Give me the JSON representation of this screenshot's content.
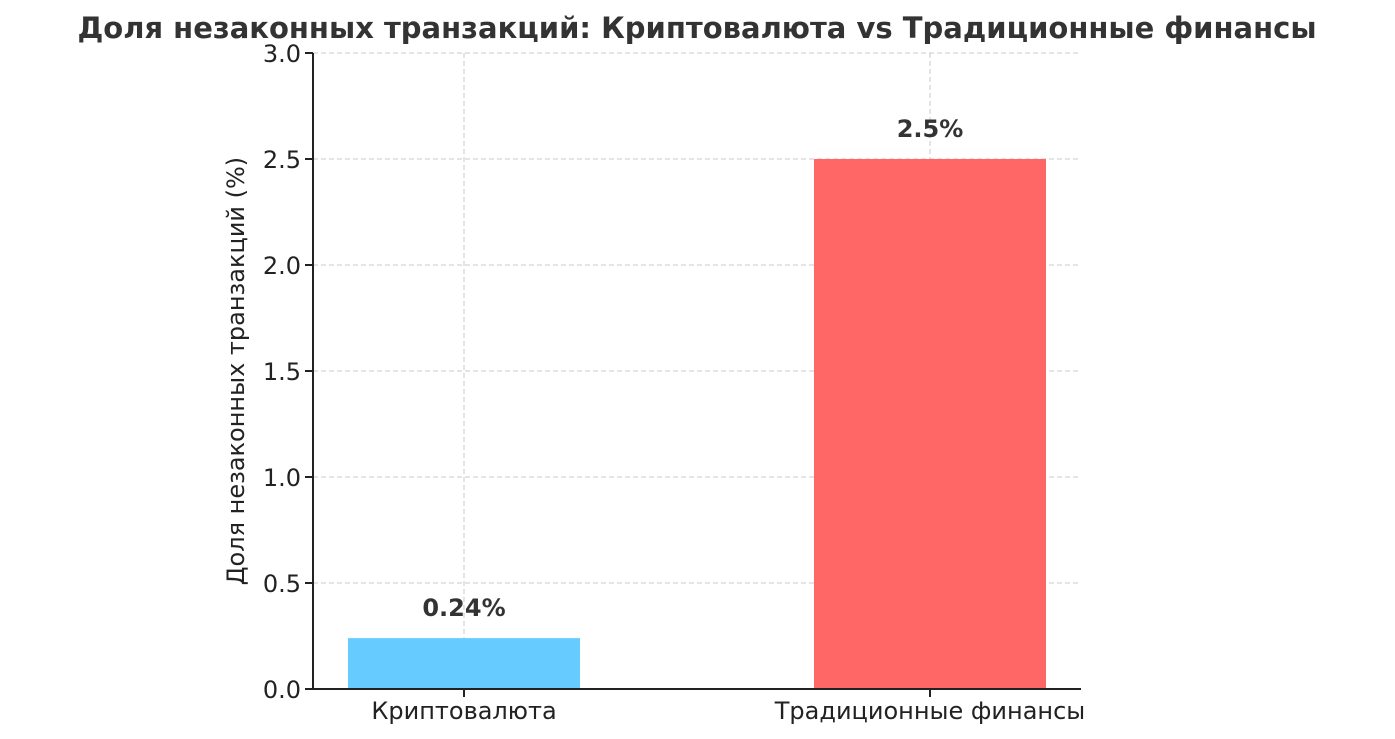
{
  "chart_data": {
    "type": "bar",
    "title": "Доля незаконных транзакций: Криптовалюта vs Традиционные финансы",
    "xlabel": "",
    "ylabel": "Доля незаконных транзакций (%)",
    "categories": [
      "Криптовалюта",
      "Традиционные финансы"
    ],
    "values": [
      0.24,
      2.5
    ],
    "data_labels": [
      "0.24%",
      "2.5%"
    ],
    "colors": [
      "#66ccff",
      "#ff6666"
    ],
    "ylim": [
      0,
      3.0
    ],
    "yticks": [
      0.0,
      0.5,
      1.0,
      1.5,
      2.0,
      2.5,
      3.0
    ],
    "ytick_labels": [
      "0.0",
      "0.5",
      "1.0",
      "1.5",
      "2.0",
      "2.5",
      "3.0"
    ],
    "grid": true,
    "legend": "none"
  }
}
